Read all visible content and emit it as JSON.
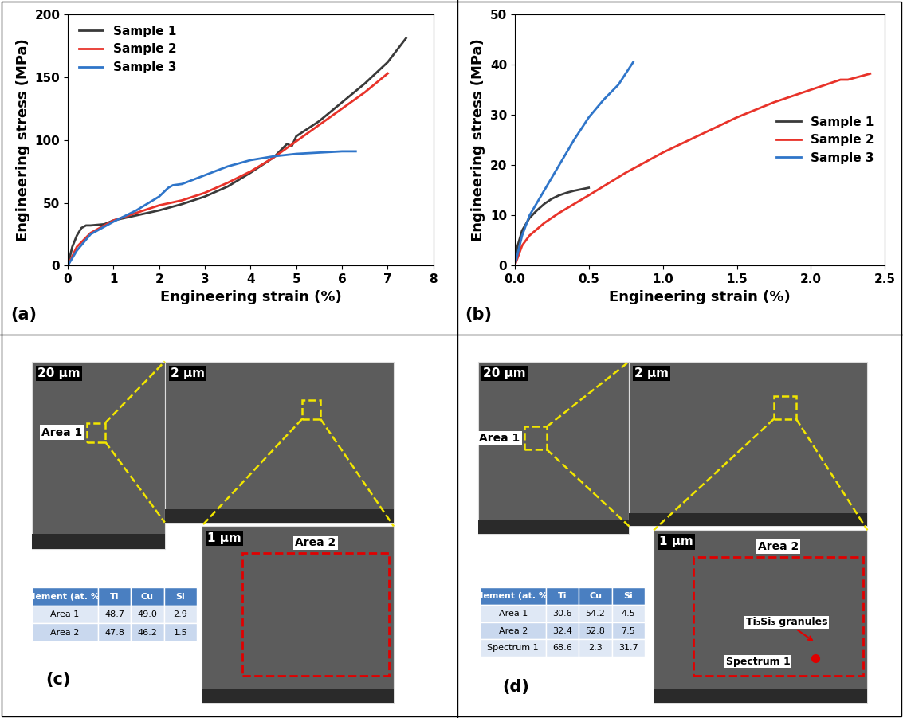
{
  "chart_data": [
    {
      "type": "line",
      "annotation": "(a)",
      "x_label": "Engineering strain (%)",
      "y_label": "Engineering stress (MPa)",
      "xlim": [
        0,
        8
      ],
      "xticks": [
        0,
        1,
        2,
        3,
        4,
        5,
        6,
        7,
        8
      ],
      "ylim": [
        0,
        200
      ],
      "yticks": [
        0,
        50,
        100,
        150,
        200
      ],
      "grid": false,
      "legend": "upper left",
      "line_style": "solid",
      "series": [
        {
          "name": "Sample 1",
          "color": "#3a3a3a",
          "x": [
            0,
            0.1,
            0.2,
            0.3,
            0.4,
            0.5,
            0.8,
            1,
            1.5,
            2,
            2.5,
            3,
            3.5,
            4,
            4.5,
            4.8,
            4.9,
            5,
            5.5,
            6,
            6.5,
            7,
            7.4
          ],
          "values": [
            0,
            15,
            24,
            30,
            32,
            32,
            33,
            36,
            40,
            44,
            49,
            55,
            63,
            74,
            86,
            97,
            95,
            103,
            115,
            130,
            145,
            162,
            181
          ]
        },
        {
          "name": "Sample 2",
          "color": "#e8332a",
          "x": [
            0,
            0.2,
            0.5,
            0.8,
            1,
            1.5,
            2,
            2.5,
            3,
            3.5,
            4,
            4.5,
            5,
            5.5,
            6,
            6.5,
            7
          ],
          "values": [
            0,
            15,
            26,
            32,
            36,
            42,
            48,
            52,
            58,
            66,
            75,
            86,
            99,
            112,
            125,
            138,
            153
          ]
        },
        {
          "name": "Sample 3",
          "color": "#2f75c9",
          "x": [
            0,
            0.2,
            0.5,
            1,
            1.5,
            2,
            2.2,
            2.3,
            2.5,
            3,
            3.5,
            4,
            4.5,
            5,
            5.5,
            6,
            6.3
          ],
          "values": [
            0,
            12,
            25,
            35,
            44,
            55,
            62,
            64,
            65,
            72,
            79,
            84,
            87,
            89,
            90,
            91,
            91
          ]
        }
      ]
    },
    {
      "type": "line",
      "annotation": "(b)",
      "x_label": "Engineering strain (%)",
      "y_label": "Engineering stress (MPa)",
      "xlim": [
        0,
        2.5
      ],
      "xticks": [
        0.0,
        0.5,
        1.0,
        1.5,
        2.0,
        2.5
      ],
      "ylim": [
        0,
        50
      ],
      "yticks": [
        0,
        10,
        20,
        30,
        40,
        50
      ],
      "grid": false,
      "legend": "center right",
      "line_style": "solid",
      "series": [
        {
          "name": "Sample 1",
          "color": "#3a3a3a",
          "x": [
            0,
            0.02,
            0.05,
            0.1,
            0.15,
            0.2,
            0.25,
            0.3,
            0.35,
            0.4,
            0.45,
            0.5
          ],
          "values": [
            0,
            4,
            7,
            9.5,
            11,
            12.3,
            13.3,
            14,
            14.5,
            14.9,
            15.2,
            15.5
          ]
        },
        {
          "name": "Sample 2",
          "color": "#e8332a",
          "x": [
            0,
            0.05,
            0.1,
            0.2,
            0.3,
            0.5,
            0.75,
            1,
            1.25,
            1.5,
            1.75,
            2,
            2.2,
            2.25,
            2.4
          ],
          "values": [
            0,
            4,
            6,
            8.5,
            10.5,
            14,
            18.5,
            22.5,
            26,
            29.5,
            32.5,
            35,
            37,
            37,
            38.2
          ]
        },
        {
          "name": "Sample 3",
          "color": "#2f75c9",
          "x": [
            0,
            0.05,
            0.1,
            0.2,
            0.3,
            0.4,
            0.5,
            0.6,
            0.7,
            0.8
          ],
          "values": [
            0,
            6,
            10,
            15,
            20,
            25,
            29.5,
            33,
            36,
            40.5
          ]
        }
      ]
    }
  ],
  "image_panels": [
    {
      "annotation": "(c)",
      "images": [
        {
          "scale": "20 µm",
          "labels": [
            "Area 1"
          ]
        },
        {
          "scale": "2 µm",
          "labels": []
        },
        {
          "scale": "1 µm",
          "labels": [
            "Area 2"
          ]
        }
      ],
      "table": {
        "header": [
          "Element (at. %)",
          "Ti",
          "Cu",
          "Si"
        ],
        "rows": [
          [
            "Area 1",
            "48.7",
            "49.0",
            "2.9"
          ],
          [
            "Area 2",
            "47.8",
            "46.2",
            "1.5"
          ]
        ]
      }
    },
    {
      "annotation": "(d)",
      "images": [
        {
          "scale": "20 µm",
          "labels": [
            "Area 1"
          ]
        },
        {
          "scale": "2 µm",
          "labels": []
        },
        {
          "scale": "1 µm",
          "labels": [
            "Area 2",
            "Ti₅Si₃ granules",
            "Spectrum 1"
          ]
        }
      ],
      "table": {
        "header": [
          "Element (at. %)",
          "Ti",
          "Cu",
          "Si"
        ],
        "rows": [
          [
            "Area 1",
            "30.6",
            "54.2",
            "4.5"
          ],
          [
            "Area 2",
            "32.4",
            "52.8",
            "7.5"
          ],
          [
            "Spectrum 1",
            "68.6",
            "2.3",
            "31.7"
          ]
        ]
      }
    }
  ]
}
